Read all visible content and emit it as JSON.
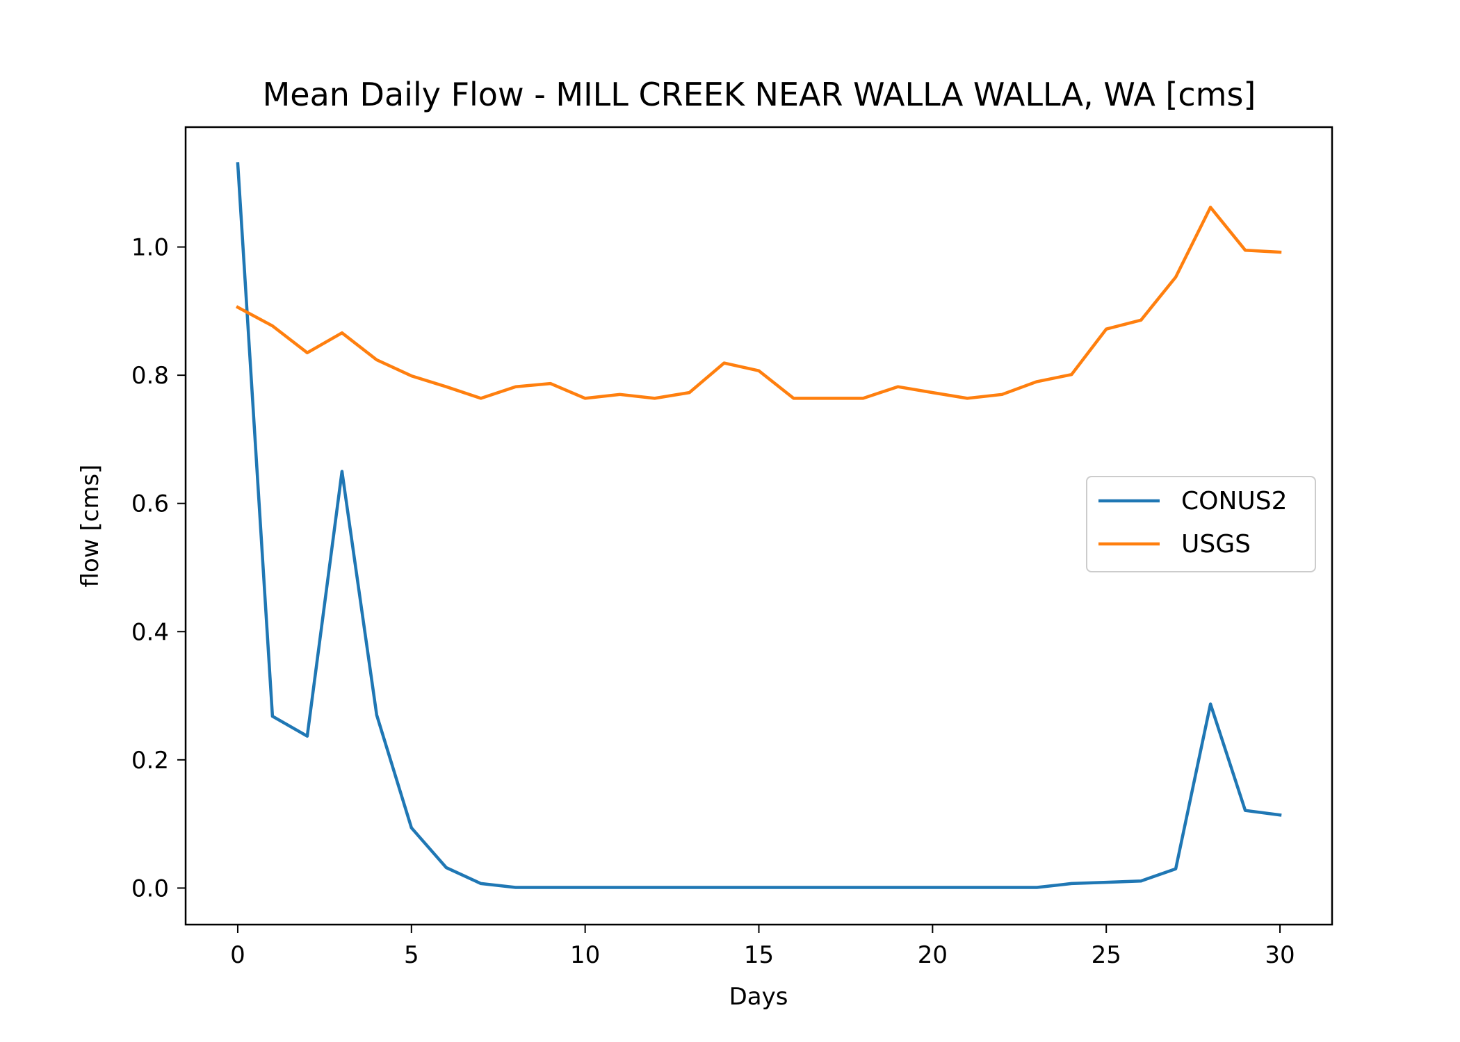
{
  "chart_data": {
    "type": "line",
    "title": "Mean Daily Flow - MILL CREEK NEAR WALLA WALLA, WA [cms]",
    "xlabel": "Days",
    "ylabel": "flow [cms]",
    "xlim": [
      -1.5,
      31.5
    ],
    "ylim": [
      -0.057,
      1.187
    ],
    "xticks": [
      0,
      5,
      10,
      15,
      20,
      25,
      30
    ],
    "xtick_labels": [
      "0",
      "5",
      "10",
      "15",
      "20",
      "25",
      "30"
    ],
    "yticks": [
      0.0,
      0.2,
      0.4,
      0.6,
      0.8,
      1.0
    ],
    "ytick_labels": [
      "0.0",
      "0.2",
      "0.4",
      "0.6",
      "0.8",
      "1.0"
    ],
    "grid": false,
    "legend_position": "center-right",
    "x": [
      0,
      1,
      2,
      3,
      4,
      5,
      6,
      7,
      8,
      9,
      10,
      11,
      12,
      13,
      14,
      15,
      16,
      17,
      18,
      19,
      20,
      21,
      22,
      23,
      24,
      25,
      26,
      27,
      28,
      29,
      30
    ],
    "series": [
      {
        "name": "CONUS2",
        "color": "#1f77b4",
        "values": [
          1.13,
          0.268,
          0.237,
          0.65,
          0.27,
          0.094,
          0.032,
          0.007,
          0.001,
          0.001,
          0.001,
          0.001,
          0.001,
          0.001,
          0.001,
          0.001,
          0.001,
          0.001,
          0.001,
          0.001,
          0.001,
          0.001,
          0.001,
          0.001,
          0.007,
          0.009,
          0.011,
          0.03,
          0.287,
          0.121,
          0.114
        ]
      },
      {
        "name": "USGS",
        "color": "#ff7f0e",
        "values": [
          0.906,
          0.877,
          0.835,
          0.866,
          0.824,
          0.799,
          0.782,
          0.764,
          0.782,
          0.787,
          0.764,
          0.77,
          0.764,
          0.773,
          0.819,
          0.807,
          0.764,
          0.764,
          0.764,
          0.782,
          0.773,
          0.764,
          0.77,
          0.79,
          0.801,
          0.872,
          0.886,
          0.953,
          1.062,
          0.995,
          0.992
        ]
      }
    ]
  }
}
